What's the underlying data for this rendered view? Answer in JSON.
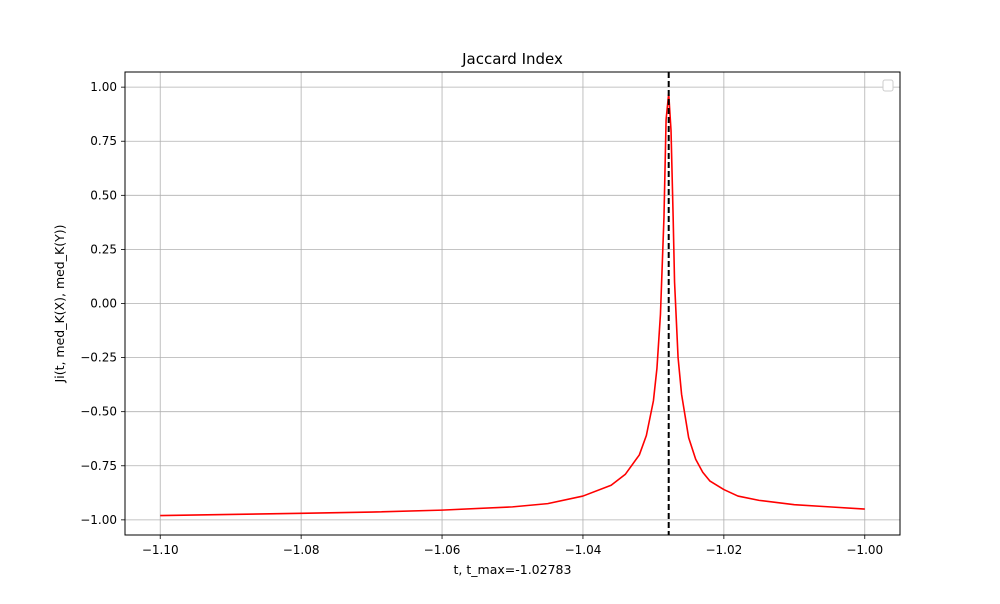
{
  "chart_data": {
    "type": "line",
    "title": "Jaccard Index",
    "xlabel": "t, t_max=-1.02783",
    "ylabel": "Ji(t, med_K(X), med_K(Y))",
    "xlim": [
      -1.105,
      -0.995
    ],
    "ylim": [
      -1.07,
      1.07
    ],
    "xticks": [
      -1.1,
      -1.08,
      -1.06,
      -1.04,
      -1.02,
      -1.0
    ],
    "xtick_labels": [
      "−1.10",
      "−1.08",
      "−1.06",
      "−1.04",
      "−1.02",
      "−1.00"
    ],
    "yticks": [
      1.0,
      0.75,
      0.5,
      0.25,
      0.0,
      -0.25,
      -0.5,
      -0.75,
      -1.0
    ],
    "ytick_labels": [
      "1.00",
      "0.75",
      "0.50",
      "0.25",
      "0.00",
      "−0.25",
      "−0.50",
      "−0.75",
      "−1.00"
    ],
    "grid": true,
    "legend": "upper-right, empty",
    "vline": {
      "x": -1.02783,
      "color": "#000000",
      "style": "dashed"
    },
    "series": [
      {
        "color": "#ff0000",
        "x": [
          -1.1,
          -1.09,
          -1.08,
          -1.07,
          -1.06,
          -1.05,
          -1.045,
          -1.04,
          -1.036,
          -1.034,
          -1.032,
          -1.031,
          -1.03,
          -1.0295,
          -1.029,
          -1.0285,
          -1.0282,
          -1.02783,
          -1.0275,
          -1.0272,
          -1.027,
          -1.0265,
          -1.026,
          -1.025,
          -1.024,
          -1.023,
          -1.022,
          -1.02,
          -1.018,
          -1.015,
          -1.01,
          -1.005,
          -1.0
        ],
        "y": [
          -0.98,
          -0.975,
          -0.97,
          -0.964,
          -0.955,
          -0.94,
          -0.925,
          -0.89,
          -0.84,
          -0.79,
          -0.7,
          -0.61,
          -0.45,
          -0.3,
          -0.05,
          0.4,
          0.85,
          0.97,
          0.8,
          0.4,
          0.1,
          -0.25,
          -0.42,
          -0.62,
          -0.72,
          -0.78,
          -0.82,
          -0.86,
          -0.89,
          -0.91,
          -0.93,
          -0.94,
          -0.95
        ]
      }
    ]
  }
}
